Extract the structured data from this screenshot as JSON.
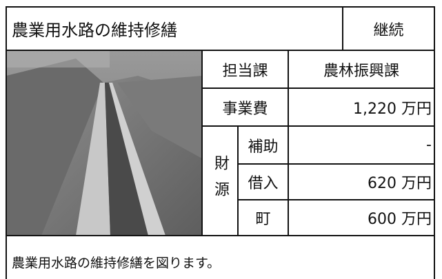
{
  "header": {
    "title": "農業用水路の維持修繕",
    "status": "継続"
  },
  "table": {
    "department": {
      "label": "担当課",
      "value": "農林振興課"
    },
    "cost": {
      "label": "事業費",
      "value": "1,220 万円"
    },
    "funding": {
      "label": "財源",
      "rows": [
        [
          "補助",
          "-"
        ],
        [
          "借入",
          "620 万円"
        ],
        [
          "町",
          "600 万円"
        ]
      ]
    }
  },
  "description": "農業用水路の維持修繕を図ります。"
}
